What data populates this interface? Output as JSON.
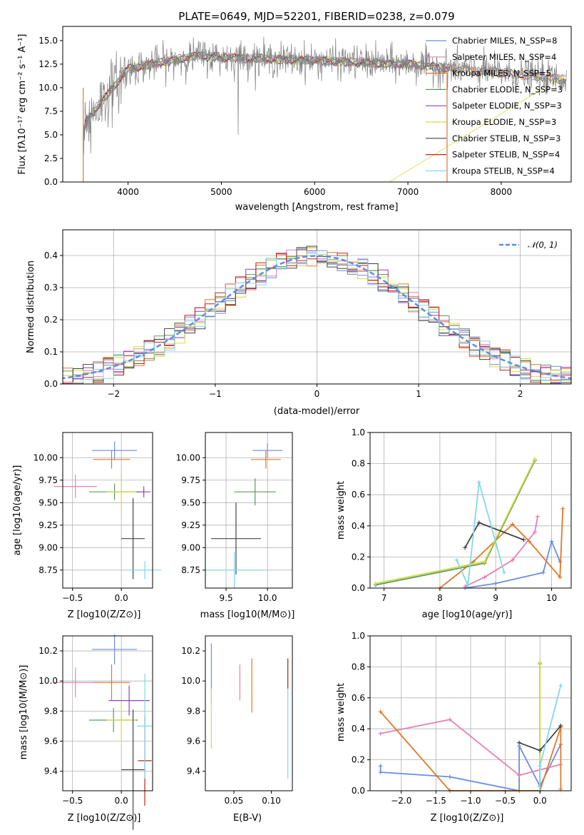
{
  "chart_data": [
    {
      "type": "line",
      "title": "PLATE=0649, MJD=52201, FIBERID=0238, z=0.079",
      "xlabel": "wavelength [Angstrom, rest frame]",
      "ylabel": "Flux [fλ10⁻¹⁷ erg cm⁻² s⁻¹ A⁻¹]",
      "xlim": [
        3300,
        8750
      ],
      "ylim": [
        0,
        16.5
      ],
      "xticks": [
        4000,
        5000,
        6000,
        7000,
        8000
      ],
      "yticks": [
        0.0,
        2.5,
        5.0,
        7.5,
        10.0,
        12.5,
        15.0
      ],
      "grid": false,
      "legend_position": "right",
      "series": [
        {
          "name": "Chabrier MILES, N_SSP=8",
          "color": "#6a8ee0"
        },
        {
          "name": "Salpeter MILES, N_SSP=4",
          "color": "#e680b4"
        },
        {
          "name": "Kroupa MILES, N_SSP=5",
          "color": "#e07828"
        },
        {
          "name": "Chabrier ELODIE, N_SSP=3",
          "color": "#5a9a5a"
        },
        {
          "name": "Salpeter ELODIE, N_SSP=3",
          "color": "#9040b0"
        },
        {
          "name": "Kroupa ELODIE, N_SSP=3",
          "color": "#d6dc3c"
        },
        {
          "name": "Chabrier STELIB, N_SSP=3",
          "color": "#444444"
        },
        {
          "name": "Salpeter STELIB, N_SSP=4",
          "color": "#c02020"
        },
        {
          "name": "Kroupa STELIB, N_SSP=4",
          "color": "#80d8e8"
        }
      ]
    },
    {
      "type": "histogram",
      "xlabel": "(data-model)/error",
      "ylabel": "Normed distribution",
      "xlim": [
        -2.5,
        2.5
      ],
      "ylim": [
        0,
        0.48
      ],
      "xticks": [
        -2,
        -1,
        0,
        1,
        2
      ],
      "yticks": [
        0.0,
        0.1,
        0.2,
        0.3,
        0.4
      ],
      "grid": true,
      "legend": [
        "𝒩(0, 1)"
      ],
      "legend_position": "top-right",
      "normal_curve": {
        "mean": 0,
        "std": 1,
        "color": "#5b8ee0"
      }
    },
    {
      "type": "scatter",
      "xlabel": "Z [log10(Z/Z⊙)]",
      "ylabel": "age  [log10(age/yr)]",
      "xlim": [
        -0.6,
        0.32
      ],
      "ylim": [
        8.55,
        10.28
      ],
      "xticks": [
        -0.5,
        0.0
      ],
      "yticks": [
        8.75,
        9.0,
        9.25,
        9.5,
        9.75,
        10.0
      ],
      "grid": true,
      "points": [
        {
          "x": -0.07,
          "y": 10.08,
          "xerr": 0.23,
          "yerr": 0.1,
          "color": "#6a8ee0"
        },
        {
          "x": -0.1,
          "y": 9.98,
          "xerr": 0.19,
          "yerr": 0.1,
          "color": "#e07828"
        },
        {
          "x": -0.47,
          "y": 9.68,
          "xerr": 0.22,
          "yerr": 0.13,
          "color": "#e680b4"
        },
        {
          "x": -0.07,
          "y": 9.62,
          "xerr": 0.26,
          "yerr": 0.09,
          "color": "#5a9a5a"
        },
        {
          "x": 0.0,
          "y": 9.62,
          "xerr": 0.15,
          "yerr": 0.2,
          "color": "#d6dc3c"
        },
        {
          "x": 0.23,
          "y": 9.62,
          "xerr": 0.07,
          "yerr": 0.06,
          "color": "#9040b0"
        },
        {
          "x": 0.12,
          "y": 9.1,
          "xerr": 0.12,
          "yerr": 0.45,
          "color": "#444444"
        },
        {
          "x": 0.24,
          "y": 8.75,
          "xerr": 0.17,
          "yerr": 0.1,
          "color": "#80d8e8"
        }
      ]
    },
    {
      "type": "scatter",
      "xlabel": "mass [log10(M/M⊙)]",
      "xlim": [
        9.25,
        10.3
      ],
      "ylim": [
        8.55,
        10.28
      ],
      "xticks": [
        9.5,
        10.0
      ],
      "yticks": [
        8.75,
        9.0,
        9.25,
        9.5,
        9.75,
        10.0
      ],
      "grid": true,
      "points": [
        {
          "x": 10.0,
          "y": 10.08,
          "xerr": 0.18,
          "yerr": 0.08,
          "color": "#6a8ee0"
        },
        {
          "x": 9.98,
          "y": 9.98,
          "xerr": 0.18,
          "yerr": 0.1,
          "color": "#e07828"
        },
        {
          "x": 9.85,
          "y": 9.62,
          "xerr": 0.25,
          "yerr": 0.15,
          "color": "#5a9a5a"
        },
        {
          "x": 9.62,
          "y": 9.1,
          "xerr": 0.3,
          "yerr": 0.4,
          "color": "#444444"
        },
        {
          "x": 9.6,
          "y": 8.75,
          "xerr": 0.35,
          "yerr": 0.2,
          "color": "#80d8e8"
        }
      ]
    },
    {
      "type": "line",
      "xlabel": "age  [log10(age/yr)]",
      "ylabel": "mass weight",
      "xlim": [
        6.75,
        10.35
      ],
      "ylim": [
        0,
        1.0
      ],
      "xticks": [
        7,
        8,
        9,
        10
      ],
      "yticks": [
        0.0,
        0.2,
        0.4,
        0.6,
        0.8,
        1.0
      ],
      "grid": true,
      "series": [
        {
          "color": "#6a8ee0",
          "x": [
            8.45,
            9.0,
            9.85,
            10.0,
            10.15
          ],
          "y": [
            0.0,
            0.03,
            0.1,
            0.3,
            0.17
          ]
        },
        {
          "color": "#e680b4",
          "x": [
            8.45,
            8.8,
            9.3,
            9.7,
            9.75
          ],
          "y": [
            0.01,
            0.07,
            0.18,
            0.36,
            0.46
          ]
        },
        {
          "color": "#e07828",
          "x": [
            8.0,
            8.6,
            9.3,
            9.6,
            10.15,
            10.2
          ],
          "y": [
            0.0,
            0.17,
            0.41,
            0.3,
            0.07,
            0.51
          ]
        },
        {
          "color": "#5a9a5a",
          "x": [
            6.85,
            8.8,
            9.7
          ],
          "y": [
            0.02,
            0.16,
            0.82
          ]
        },
        {
          "color": "#d6dc3c",
          "x": [
            6.85,
            8.8,
            9.7
          ],
          "y": [
            0.03,
            0.17,
            0.83
          ]
        },
        {
          "color": "#444444",
          "x": [
            8.45,
            8.7,
            9.5
          ],
          "y": [
            0.26,
            0.42,
            0.31
          ]
        },
        {
          "color": "#80d8e8",
          "x": [
            8.3,
            8.5,
            8.7,
            9.15
          ],
          "y": [
            0.18,
            0.02,
            0.68,
            0.1
          ]
        }
      ]
    },
    {
      "type": "scatter",
      "xlabel": "Z [log10(Z/Z⊙)]",
      "ylabel": "mass [log10(M/M⊙)]",
      "xlim": [
        -0.6,
        0.32
      ],
      "ylim": [
        9.27,
        10.3
      ],
      "xticks": [
        -0.5,
        0.0
      ],
      "yticks": [
        9.4,
        9.6,
        9.8,
        10.0,
        10.2
      ],
      "grid": true,
      "points": [
        {
          "x": -0.07,
          "y": 10.21,
          "xerr": 0.23,
          "yerr": 0.1,
          "color": "#6a8ee0"
        },
        {
          "x": -0.1,
          "y": 9.99,
          "xerr": 0.19,
          "yerr": 0.12,
          "color": "#e07828"
        },
        {
          "x": -0.47,
          "y": 9.99,
          "xerr": 0.22,
          "yerr": 0.1,
          "color": "#e680b4"
        },
        {
          "x": -0.08,
          "y": 9.74,
          "xerr": 0.25,
          "yerr": 0.08,
          "color": "#5a9a5a"
        },
        {
          "x": 0.0,
          "y": 9.74,
          "xerr": 0.15,
          "yerr": 0.15,
          "color": "#d6dc3c"
        },
        {
          "x": 0.08,
          "y": 9.87,
          "xerr": 0.21,
          "yerr": 0.1,
          "color": "#9040b0"
        },
        {
          "x": 0.12,
          "y": 9.41,
          "xerr": 0.12,
          "yerr": 0.4,
          "color": "#444444"
        },
        {
          "x": 0.24,
          "y": 9.47,
          "xerr": 0.07,
          "yerr": 0.3,
          "color": "#c02020"
        },
        {
          "x": 0.24,
          "y": 9.7,
          "xerr": 0.08,
          "yerr": 0.35,
          "color": "#80d8e8"
        }
      ]
    },
    {
      "type": "scatter",
      "xlabel": "E(B-V)",
      "xlim": [
        0.012,
        0.128
      ],
      "ylim": [
        9.27,
        10.3
      ],
      "xticks": [
        0.05,
        0.1
      ],
      "yticks": [
        9.4,
        9.6,
        9.8,
        10.0,
        10.2
      ],
      "grid": false,
      "points": [
        {
          "x": 0.02,
          "y": 10.05,
          "yerr": 0.2,
          "color": "#6a8ee0"
        },
        {
          "x": 0.02,
          "y": 9.75,
          "yerr": 0.2,
          "color": "#d6dc3c"
        },
        {
          "x": 0.058,
          "y": 9.99,
          "yerr": 0.12,
          "color": "#e680b4"
        },
        {
          "x": 0.074,
          "y": 9.97,
          "yerr": 0.18,
          "color": "#e07828"
        },
        {
          "x": 0.122,
          "y": 9.75,
          "yerr": 0.4,
          "color": "#80d8e8"
        },
        {
          "x": 0.122,
          "y": 10.05,
          "yerr": 0.1,
          "color": "#c02020"
        }
      ]
    },
    {
      "type": "line",
      "xlabel": "Z [log10(Z/Z⊙)]",
      "ylabel": "mass weight",
      "xlim": [
        -2.45,
        0.45
      ],
      "ylim": [
        0,
        1.0
      ],
      "xticks": [
        -2.0,
        -1.5,
        -1.0,
        -0.5,
        0.0
      ],
      "yticks": [
        0.0,
        0.2,
        0.4,
        0.6,
        0.8,
        1.0
      ],
      "grid": true,
      "series": [
        {
          "color": "#6a8ee0",
          "x": [
            -2.3,
            -2.3,
            -1.3,
            -0.3,
            -0.3,
            0.0,
            0.3
          ],
          "y": [
            0.16,
            0.12,
            0.09,
            0.0,
            0.29,
            0.03,
            0.3
          ]
        },
        {
          "color": "#e680b4",
          "x": [
            -2.3,
            -1.3,
            -0.3,
            0.3
          ],
          "y": [
            0.37,
            0.46,
            0.1,
            0.17
          ]
        },
        {
          "color": "#e07828",
          "x": [
            -2.3,
            -1.3,
            -0.3,
            0.0,
            0.3,
            0.3
          ],
          "y": [
            0.51,
            0.0,
            0.0,
            0.0,
            0.41,
            0.01
          ]
        },
        {
          "color": "#5a9a5a",
          "x": [
            0.0,
            0.0
          ],
          "y": [
            0.0,
            0.82
          ]
        },
        {
          "color": "#d6dc3c",
          "x": [
            0.0,
            0.0
          ],
          "y": [
            0.0,
            0.83
          ]
        },
        {
          "color": "#444444",
          "x": [
            -0.3,
            0.0,
            0.3
          ],
          "y": [
            0.31,
            0.26,
            0.42
          ]
        },
        {
          "color": "#80d8e8",
          "x": [
            0.0,
            0.0,
            0.3
          ],
          "y": [
            0.0,
            0.16,
            0.68
          ]
        }
      ]
    }
  ]
}
